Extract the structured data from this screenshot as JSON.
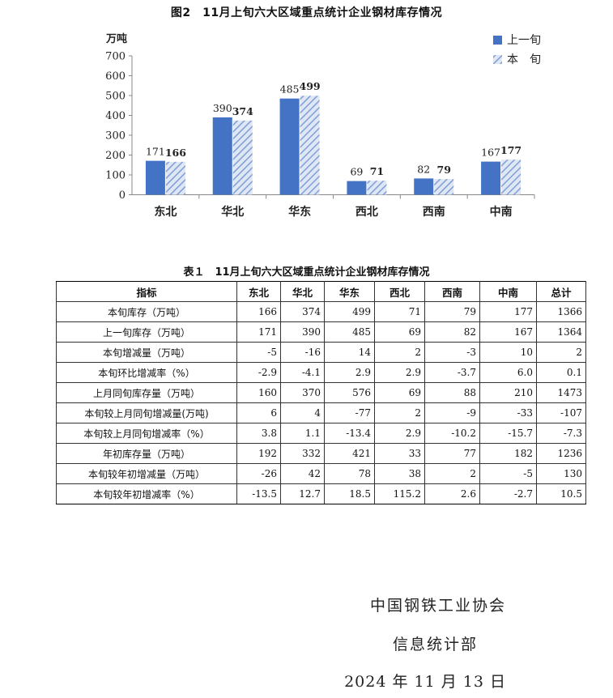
{
  "chart_title": "图2　11月上旬六大区域重点统计企业钢材库存情况",
  "chart_data": {
    "type": "bar",
    "ylabel": "万吨",
    "ylim": [
      0,
      700
    ],
    "yticks": [
      0,
      100,
      200,
      300,
      400,
      500,
      600,
      700
    ],
    "categories": [
      "东北",
      "华北",
      "华东",
      "西北",
      "西南",
      "中南"
    ],
    "series": [
      {
        "name": "上一旬",
        "values": [
          171,
          390,
          485,
          69,
          82,
          167
        ],
        "color": "#4472C4",
        "pattern": "solid"
      },
      {
        "name": "本　旬",
        "values": [
          166,
          374,
          499,
          71,
          79,
          177
        ],
        "color": "#9DB3DE",
        "pattern": "hatched"
      }
    ],
    "legend": "top-right",
    "grid": false
  },
  "table": {
    "title": "表１　11月上旬六大区域重点统计企业钢材库存情况",
    "headers": [
      "指标",
      "东北",
      "华北",
      "华东",
      "西北",
      "西南",
      "中南",
      "总计"
    ],
    "rows": [
      [
        "本旬库存（万吨）",
        "166",
        "374",
        "499",
        "71",
        "79",
        "177",
        "1366"
      ],
      [
        "上一旬库存（万吨）",
        "171",
        "390",
        "485",
        "69",
        "82",
        "167",
        "1364"
      ],
      [
        "本旬增减量（万吨）",
        "-5",
        "-16",
        "14",
        "2",
        "-3",
        "10",
        "2"
      ],
      [
        "本旬环比增减率（%）",
        "-2.9",
        "-4.1",
        "2.9",
        "2.9",
        "-3.7",
        "6.0",
        "0.1"
      ],
      [
        "上月同旬库存量（万吨）",
        "160",
        "370",
        "576",
        "69",
        "88",
        "210",
        "1473"
      ],
      [
        "本旬较上月同旬增减量(万吨)",
        "6",
        "4",
        "-77",
        "2",
        "-9",
        "-33",
        "-107"
      ],
      [
        "本旬较上月同旬增减率（%）",
        "3.8",
        "1.1",
        "-13.4",
        "2.9",
        "-10.2",
        "-15.7",
        "-7.3"
      ],
      [
        "年初库存量（万吨）",
        "192",
        "332",
        "421",
        "33",
        "77",
        "182",
        "1236"
      ],
      [
        "本旬较年初增减量（万吨）",
        "-26",
        "42",
        "78",
        "38",
        "2",
        "-5",
        "130"
      ],
      [
        "本旬较年初增减率（%）",
        "-13.5",
        "12.7",
        "18.5",
        "115.2",
        "2.6",
        "-2.7",
        "10.5"
      ]
    ]
  },
  "footer": {
    "org": "中国钢铁工业协会",
    "dept": "信息统计部",
    "date": "2024 年 11 月 13 日"
  }
}
